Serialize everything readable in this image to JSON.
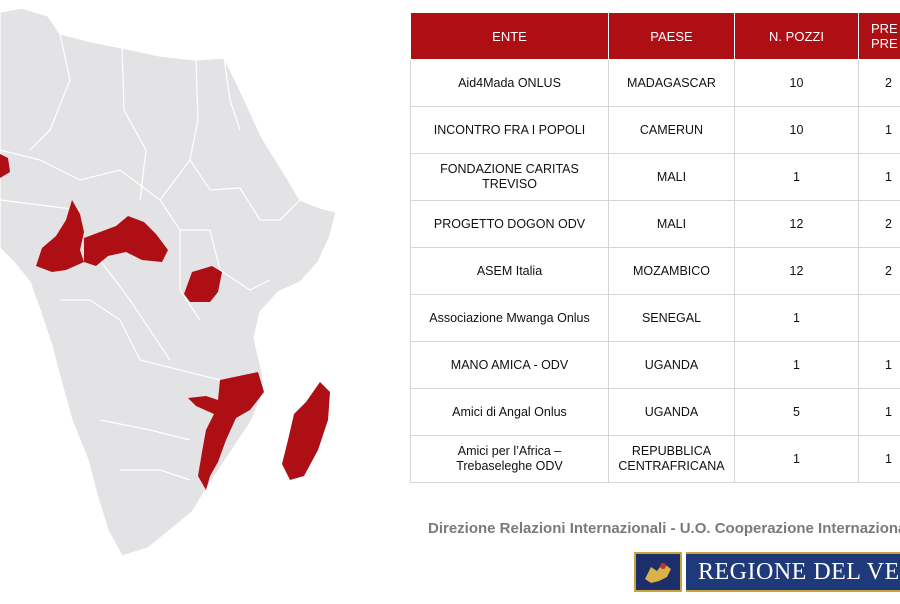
{
  "table": {
    "headers": [
      "ENTE",
      "PAESE",
      "N. POZZI",
      "PRE\nPRE"
    ],
    "rows": [
      {
        "ente": "Aid4Mada ONLUS",
        "paese": "MADAGASCAR",
        "pozzi": "10",
        "extra": "2"
      },
      {
        "ente": "INCONTRO FRA I POPOLI",
        "paese": "CAMERUN",
        "pozzi": "10",
        "extra": "1"
      },
      {
        "ente": "FONDAZIONE CARITAS\nTREVISO",
        "paese": "MALI",
        "pozzi": "1",
        "extra": "1"
      },
      {
        "ente": "PROGETTO DOGON ODV",
        "paese": "MALI",
        "pozzi": "12",
        "extra": "2"
      },
      {
        "ente": "ASEM Italia",
        "paese": "MOZAMBICO",
        "pozzi": "12",
        "extra": "2"
      },
      {
        "ente": "Associazione Mwanga Onlus",
        "paese": "SENEGAL",
        "pozzi": "1",
        "extra": ""
      },
      {
        "ente": "MANO AMICA - ODV",
        "paese": "UGANDA",
        "pozzi": "1",
        "extra": "1"
      },
      {
        "ente": "Amici di Angal Onlus",
        "paese": "UGANDA",
        "pozzi": "5",
        "extra": "1"
      },
      {
        "ente": "Amici per l’Africa –\nTrebaseleghe ODV",
        "paese": "REPUBBLICA\nCENTRAFRICANA",
        "pozzi": "1",
        "extra": "1"
      }
    ]
  },
  "footer": {
    "text": "Direzione Relazioni Internazionali - U.O. Cooperazione Internazionale"
  },
  "logo": {
    "text": "REGIONE DEL VENETO"
  },
  "colors": {
    "header_bg": "#ad0f14",
    "highlight": "#ad0f14",
    "land": "#e3e3e5",
    "logo_blue": "#1f3a7a"
  },
  "map": {
    "highlighted_countries": [
      "Senegal",
      "Camerun",
      "Repubblica Centrafricana",
      "Uganda",
      "Mozambico",
      "Madagascar",
      "Mali"
    ]
  }
}
